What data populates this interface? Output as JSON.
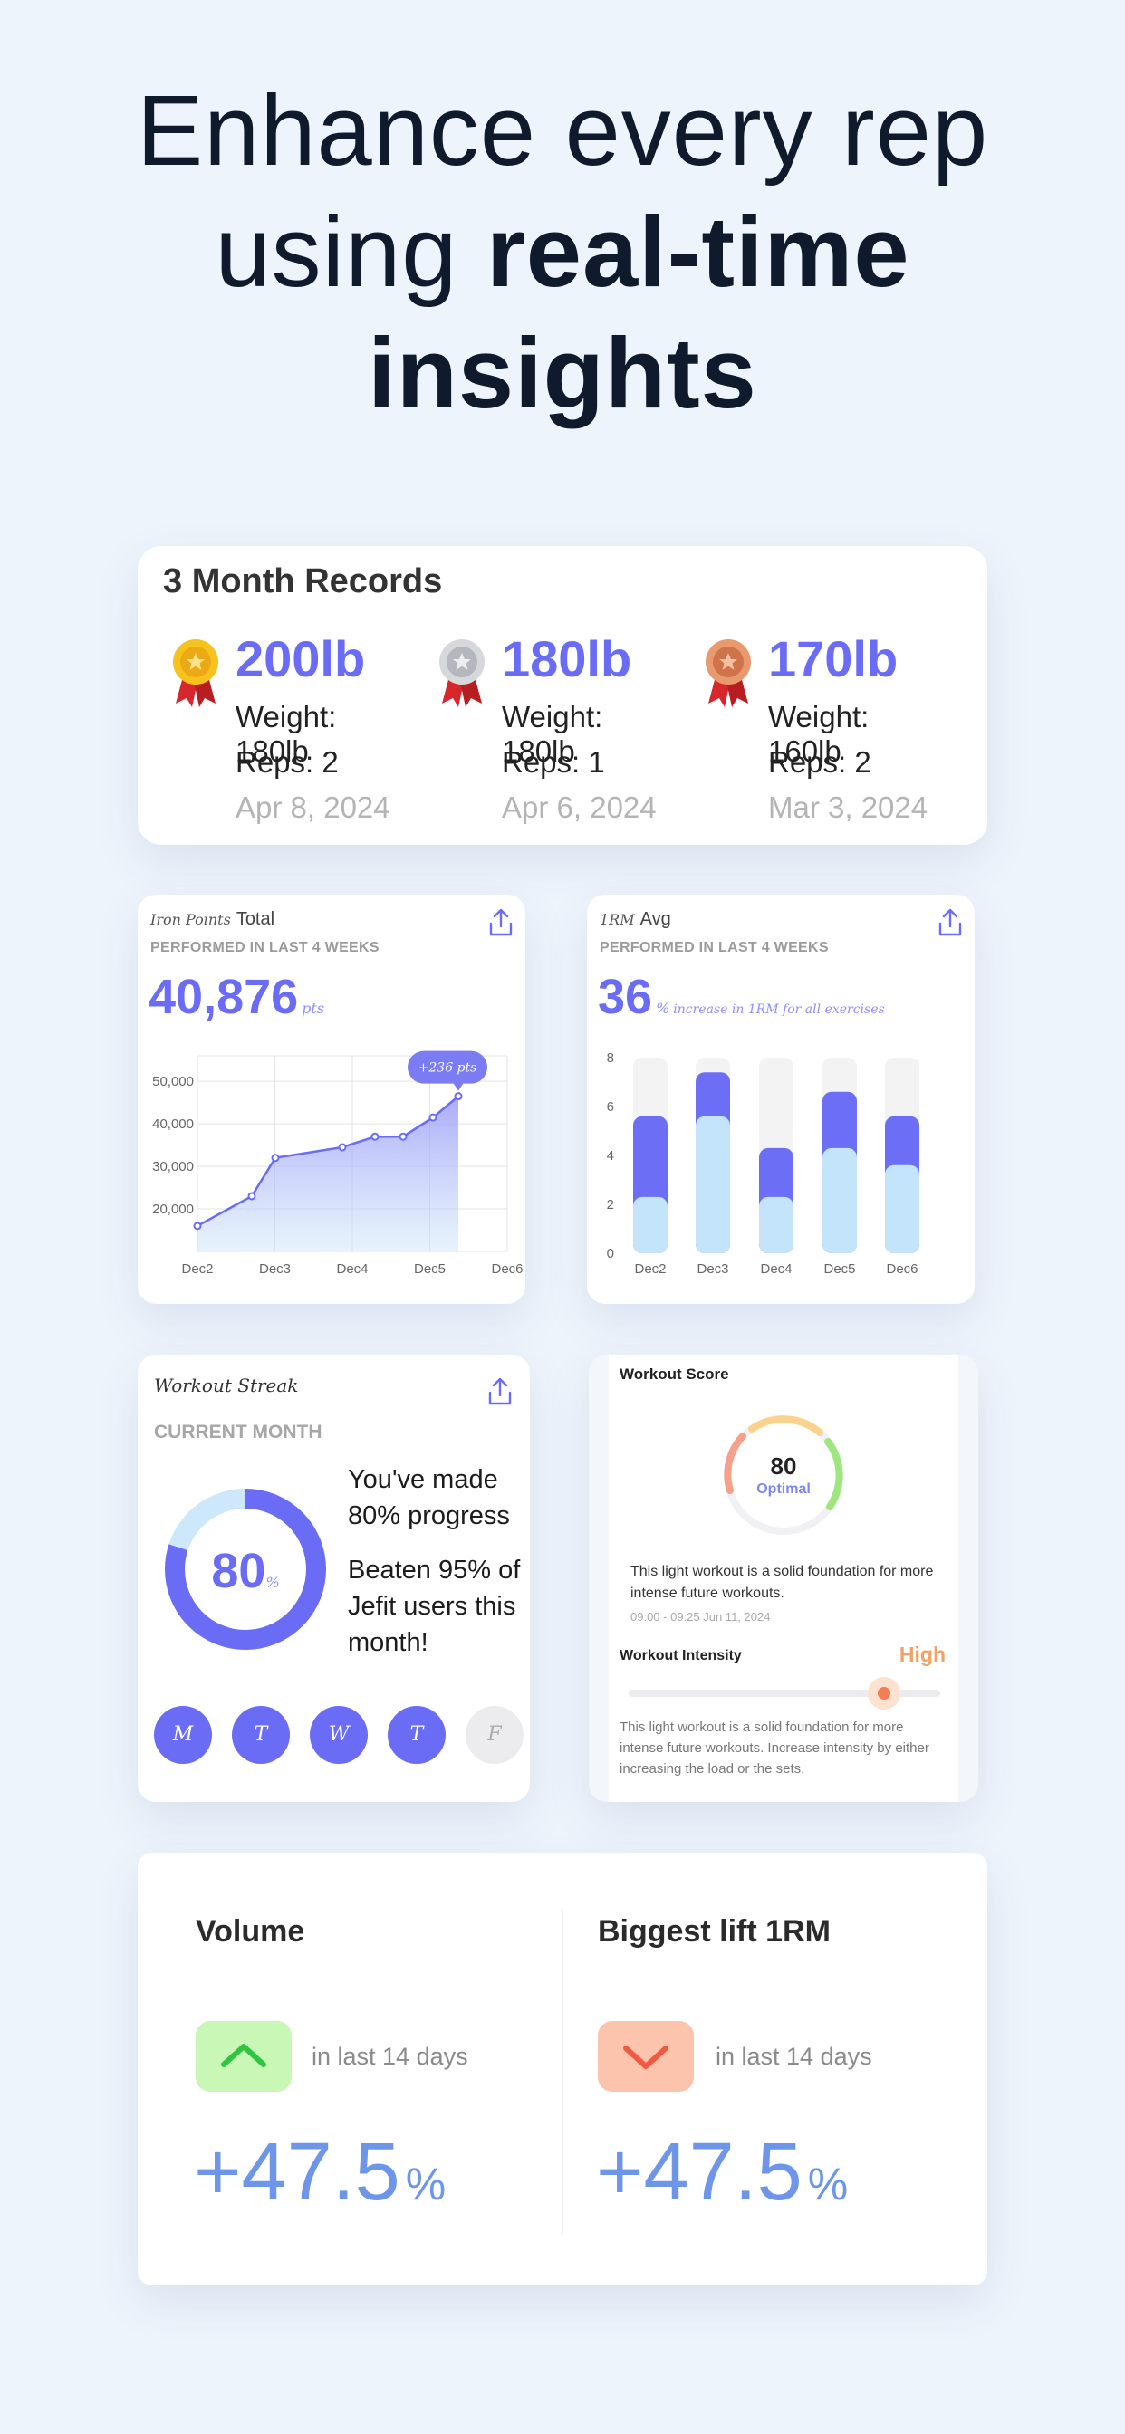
{
  "headline": {
    "line1": "Enhance every rep",
    "line2_plain": "using ",
    "line2_bold": "real-time",
    "line3": "insights"
  },
  "records": {
    "title": "3 Month Records",
    "items": [
      {
        "medal": "gold-medal-icon",
        "value": "200lb",
        "weight": "Weight: 180lb",
        "reps": "Reps: 2",
        "date": "Apr 8, 2024"
      },
      {
        "medal": "silver-medal-icon",
        "value": "180lb",
        "weight": "Weight: 180lb",
        "reps": "Reps: 1",
        "date": "Apr 6, 2024"
      },
      {
        "medal": "bronze-medal-icon",
        "value": "170lb",
        "weight": "Weight: 160lb",
        "reps": "Reps: 2",
        "date": "Mar 3, 2024"
      }
    ]
  },
  "total": {
    "script": "Iron Points",
    "label": "Total",
    "sub": "PERFORMED IN LAST 4 WEEKS",
    "value": "40,876",
    "unit": "pts",
    "callout": "+236 pts"
  },
  "avg": {
    "script": "1RM",
    "label": "Avg",
    "sub": "PERFORMED IN LAST 4 WEEKS",
    "value": "36",
    "unit": "%",
    "caption": "increase in 1RM for all exercises"
  },
  "streak": {
    "title": "Workout Streak",
    "sub": "CURRENT MONTH",
    "value": "80",
    "unit": "%",
    "progress": 0.8,
    "msg1": "You've made 80% progress",
    "msg2": "Beaten 95% of Jefit users this month!",
    "days": [
      {
        "label": "M",
        "active": true
      },
      {
        "label": "T",
        "active": true
      },
      {
        "label": "W",
        "active": true
      },
      {
        "label": "T",
        "active": true
      },
      {
        "label": "F",
        "active": false
      }
    ]
  },
  "score": {
    "title": "Workout Score",
    "value": "80",
    "status": "Optimal",
    "desc": "This light workout is a solid foundation for more intense future workouts.",
    "time": "09:00 - 09:25 Jun 11, 2024",
    "intensity_label": "Workout Intensity",
    "intensity_value": "High",
    "intensity_level": 0.82,
    "intensity_desc": "This light workout is a solid foundation for more intense future workouts. Increase intensity by either increasing the load or the sets."
  },
  "bottom": {
    "volume": {
      "title": "Volume",
      "period": "in last 14 days",
      "value": "+47.5",
      "unit": "%"
    },
    "lift": {
      "title": "Biggest lift 1RM",
      "period": "in last 14 days",
      "value": "+47.5",
      "unit": "%"
    }
  },
  "chart_data": [
    {
      "type": "area",
      "x": [
        "Dec2",
        "",
        "",
        "Dec3",
        "Dec4",
        "",
        "Dec5",
        ""
      ],
      "x_ticks": [
        "Dec2",
        "Dec3",
        "Dec4",
        "Dec5",
        "Dec6"
      ],
      "values": [
        16000,
        23000,
        32000,
        34500,
        37000,
        37000,
        41500,
        46500
      ],
      "y_ticks": [
        "20,000",
        "30,000",
        "40,000",
        "50,000"
      ],
      "ylim": [
        10000,
        56000
      ],
      "grid": true,
      "annotation": "+236 pts"
    },
    {
      "type": "bar",
      "categories": [
        "Dec2",
        "Dec3",
        "Dec4",
        "Dec5",
        "Dec6"
      ],
      "y_ticks": [
        "0",
        "2",
        "4",
        "6",
        "8"
      ],
      "ylim": [
        0,
        8
      ],
      "series": [
        {
          "values": [
            2.3,
            5.6,
            2.3,
            4.3,
            3.6
          ]
        },
        {
          "values": [
            5.6,
            7.4,
            4.3,
            6.6,
            5.6
          ]
        },
        {
          "values": [
            8,
            8,
            8,
            8,
            8
          ]
        }
      ],
      "colors": [
        "#c3e4fb",
        "#6d6ef6",
        "#f3f3f4"
      ]
    }
  ],
  "colors": {
    "accent": "#6a6cf6",
    "bg": "#eef4fc",
    "high": "#f2a266",
    "green_chip": "#c8f7b6",
    "red_chip": "#fdc4ad"
  }
}
